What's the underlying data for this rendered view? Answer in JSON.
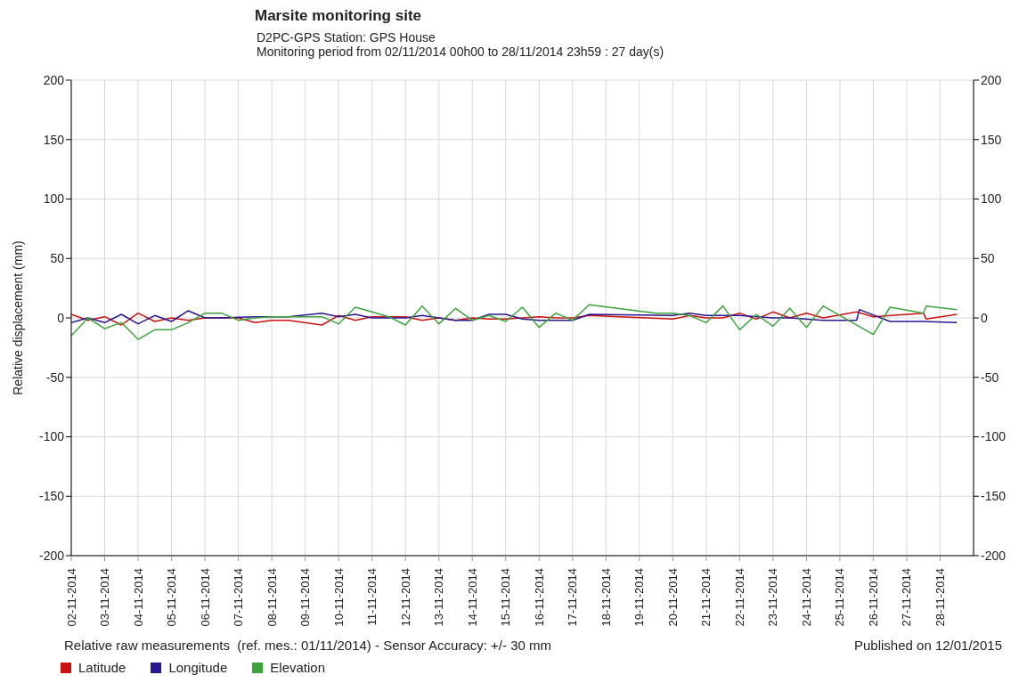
{
  "chart_data": {
    "type": "line",
    "title": "Marsite monitoring site",
    "subtitle": "D2PC-GPS Station: GPS House\nMonitoring period from 02/11/2014 00h00 to 28/11/2014 23h59 : 27 day(s)",
    "ylabel": "Relative displacement (mm)",
    "annotations": [
      "Relative raw measurements  (ref. mes.: 01/11/2014) - Sensor Accuracy: +/- 30 mm",
      "Published on 12/01/2015"
    ],
    "series": [
      {
        "name": "Latitude",
        "color": "#cc1111",
        "x": [
          "2014-11-02T00:00",
          "2014-11-02T12:00",
          "2014-11-03T00:00",
          "2014-11-03T12:00",
          "2014-11-04T00:00",
          "2014-11-04T12:00",
          "2014-11-05T00:00",
          "2014-11-05T12:00",
          "2014-11-06T00:00",
          "2014-11-06T12:00",
          "2014-11-07T00:00",
          "2014-11-07T12:00",
          "2014-11-08T00:00",
          "2014-11-08T12:00",
          "2014-11-09T12:00",
          "2014-11-10T00:00",
          "2014-11-10T12:00",
          "2014-11-11T00:00",
          "2014-11-11T12:00",
          "2014-11-12T00:00",
          "2014-11-12T12:00",
          "2014-11-13T00:00",
          "2014-11-13T12:00",
          "2014-11-14T00:00",
          "2014-11-14T12:00",
          "2014-11-15T00:00",
          "2014-11-15T12:00",
          "2014-11-16T00:00",
          "2014-11-16T12:00",
          "2014-11-17T00:00",
          "2014-11-17T12:00",
          "2014-11-20T00:00",
          "2014-11-20T12:00",
          "2014-11-21T00:00",
          "2014-11-21T12:00",
          "2014-11-22T00:00",
          "2014-11-22T12:00",
          "2014-11-23T00:00",
          "2014-11-23T12:00",
          "2014-11-24T00:00",
          "2014-11-24T12:00",
          "2014-11-25T12:00",
          "2014-11-26T00:00",
          "2014-11-27T12:00",
          "2014-11-27T14:00",
          "2014-11-28T12:00"
        ],
        "values": [
          3,
          -2,
          1,
          -6,
          4,
          -3,
          0,
          -2,
          0,
          0,
          0,
          -4,
          -2,
          -2,
          -6,
          2,
          -2,
          1,
          1,
          1,
          -2,
          0,
          -2,
          0,
          -1,
          -1,
          0,
          1,
          0,
          0,
          2,
          -1,
          2,
          0,
          0,
          4,
          -1,
          5,
          0,
          4,
          0,
          5,
          1,
          4,
          -1,
          3
        ]
      },
      {
        "name": "Longitude",
        "color": "#2a168f",
        "x": [
          "2014-11-02T00:00",
          "2014-11-02T12:00",
          "2014-11-03T00:00",
          "2014-11-03T12:00",
          "2014-11-04T00:00",
          "2014-11-04T12:00",
          "2014-11-05T00:00",
          "2014-11-05T12:00",
          "2014-11-06T00:00",
          "2014-11-06T12:00",
          "2014-11-07T12:00",
          "2014-11-08T12:00",
          "2014-11-09T12:00",
          "2014-11-10T00:00",
          "2014-11-10T12:00",
          "2014-11-11T00:00",
          "2014-11-11T12:00",
          "2014-11-12T00:00",
          "2014-11-12T12:00",
          "2014-11-13T00:00",
          "2014-11-13T12:00",
          "2014-11-14T00:00",
          "2014-11-14T12:00",
          "2014-11-15T00:00",
          "2014-11-15T12:00",
          "2014-11-16T00:00",
          "2014-11-16T12:00",
          "2014-11-17T00:00",
          "2014-11-17T12:00",
          "2014-11-20T00:00",
          "2014-11-20T12:00",
          "2014-11-21T00:00",
          "2014-11-21T12:00",
          "2014-11-22T00:00",
          "2014-11-23T00:00",
          "2014-11-23T12:00",
          "2014-11-24T12:00",
          "2014-11-25T12:00",
          "2014-11-25T14:00",
          "2014-11-26T12:00",
          "2014-11-27T12:00",
          "2014-11-28T12:00"
        ],
        "values": [
          -4,
          0,
          -4,
          3,
          -5,
          2,
          -3,
          6,
          0,
          0,
          1,
          1,
          4,
          1,
          3,
          0,
          0,
          0,
          2,
          0,
          -2,
          -2,
          3,
          3,
          -1,
          -2,
          -2,
          -2,
          3,
          2,
          4,
          2,
          2,
          2,
          0,
          0,
          -2,
          -2,
          7,
          -3,
          -3,
          -4
        ]
      },
      {
        "name": "Elevation",
        "color": "#3da33d",
        "x": [
          "2014-11-02T00:00",
          "2014-11-02T12:00",
          "2014-11-03T00:00",
          "2014-11-03T12:00",
          "2014-11-04T00:00",
          "2014-11-04T12:00",
          "2014-11-05T00:00",
          "2014-11-05T12:00",
          "2014-11-06T00:00",
          "2014-11-06T12:00",
          "2014-11-07T00:00",
          "2014-11-07T12:00",
          "2014-11-08T00:00",
          "2014-11-08T12:00",
          "2014-11-09T00:00",
          "2014-11-09T12:00",
          "2014-11-10T00:00",
          "2014-11-10T12:00",
          "2014-11-11T00:00",
          "2014-11-11T12:00",
          "2014-11-12T00:00",
          "2014-11-12T12:00",
          "2014-11-13T00:00",
          "2014-11-13T12:00",
          "2014-11-14T00:00",
          "2014-11-14T12:00",
          "2014-11-15T00:00",
          "2014-11-15T12:00",
          "2014-11-16T00:00",
          "2014-11-16T12:00",
          "2014-11-17T00:00",
          "2014-11-17T12:00",
          "2014-11-19T12:00",
          "2014-11-20T00:00",
          "2014-11-20T12:00",
          "2014-11-21T00:00",
          "2014-11-21T12:00",
          "2014-11-22T00:00",
          "2014-11-22T12:00",
          "2014-11-23T00:00",
          "2014-11-23T12:00",
          "2014-11-24T00:00",
          "2014-11-24T12:00",
          "2014-11-26T00:00",
          "2014-11-26T12:00",
          "2014-11-27T12:00",
          "2014-11-27T14:00",
          "2014-11-28T12:00"
        ],
        "values": [
          -15,
          0,
          -9,
          -4,
          -18,
          -10,
          -10,
          -4,
          4,
          4,
          -2,
          0,
          1,
          1,
          1,
          1,
          -5,
          9,
          5,
          1,
          -6,
          10,
          -5,
          8,
          -2,
          2,
          -3,
          9,
          -8,
          4,
          -2,
          11,
          4,
          4,
          2,
          -4,
          10,
          -10,
          3,
          -7,
          8,
          -8,
          10,
          -14,
          9,
          4,
          10,
          7
        ]
      }
    ],
    "xlim": [
      "2014-11-02",
      "2014-11-29"
    ],
    "xticks": [
      {
        "value": "2014-11-02",
        "label": "02-11-2014"
      },
      {
        "value": "2014-11-03",
        "label": "03-11-2014"
      },
      {
        "value": "2014-11-04",
        "label": "04-11-2014"
      },
      {
        "value": "2014-11-05",
        "label": "05-11-2014"
      },
      {
        "value": "2014-11-06",
        "label": "06-11-2014"
      },
      {
        "value": "2014-11-07",
        "label": "07-11-2014"
      },
      {
        "value": "2014-11-08",
        "label": "08-11-2014"
      },
      {
        "value": "2014-11-09",
        "label": "09-11-2014"
      },
      {
        "value": "2014-11-10",
        "label": "10-11-2014"
      },
      {
        "value": "2014-11-11",
        "label": "11-11-2014"
      },
      {
        "value": "2014-11-12",
        "label": "12-11-2014"
      },
      {
        "value": "2014-11-13",
        "label": "13-11-2014"
      },
      {
        "value": "2014-11-14",
        "label": "14-11-2014"
      },
      {
        "value": "2014-11-15",
        "label": "15-11-2014"
      },
      {
        "value": "2014-11-16",
        "label": "16-11-2014"
      },
      {
        "value": "2014-11-17",
        "label": "17-11-2014"
      },
      {
        "value": "2014-11-18",
        "label": "18-11-2014"
      },
      {
        "value": "2014-11-19",
        "label": "19-11-2014"
      },
      {
        "value": "2014-11-20",
        "label": "20-11-2014"
      },
      {
        "value": "2014-11-21",
        "label": "21-11-2014"
      },
      {
        "value": "2014-11-22",
        "label": "22-11-2014"
      },
      {
        "value": "2014-11-23",
        "label": "23-11-2014"
      },
      {
        "value": "2014-11-24",
        "label": "24-11-2014"
      },
      {
        "value": "2014-11-25",
        "label": "25-11-2014"
      },
      {
        "value": "2014-11-26",
        "label": "26-11-2014"
      },
      {
        "value": "2014-11-27",
        "label": "27-11-2014"
      },
      {
        "value": "2014-11-28",
        "label": "28-11-2014"
      }
    ],
    "ylim": [
      -200,
      200
    ],
    "yticks": [
      -200,
      -150,
      -100,
      -50,
      0,
      50,
      100,
      150,
      200
    ],
    "y2lim": [
      -200,
      200
    ],
    "y2ticks": [
      -200,
      -150,
      -100,
      -50,
      0,
      50,
      100,
      150,
      200
    ],
    "grid": true,
    "legend": "bottom left",
    "marker": "none",
    "line_style": "solid"
  }
}
